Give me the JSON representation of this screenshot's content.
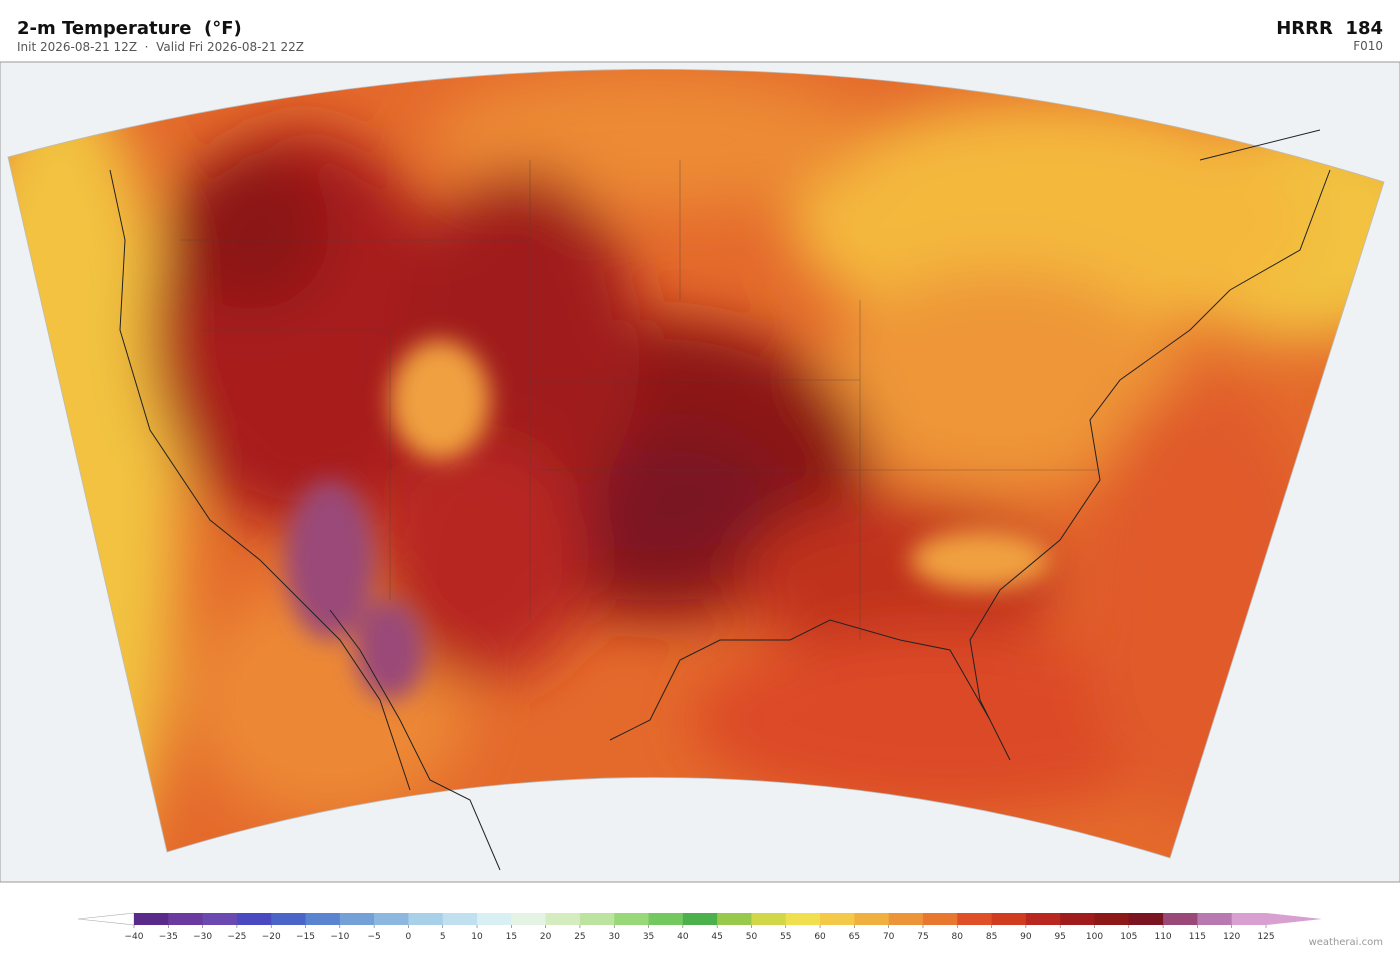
{
  "header": {
    "title": "2-m Temperature  (°F)",
    "subtitle": "Init 2026-08-21 12Z  ·  Valid Fri 2026-08-21 22Z",
    "model": "HRRR  184",
    "forecast_hour": "F010"
  },
  "colorbar": {
    "ticks": [
      {
        "value": -40,
        "label": "−40"
      },
      {
        "value": -35,
        "label": "−35"
      },
      {
        "value": -30,
        "label": "−30"
      },
      {
        "value": -25,
        "label": "−25"
      },
      {
        "value": -20,
        "label": "−20"
      },
      {
        "value": -15,
        "label": "−15"
      },
      {
        "value": -10,
        "label": "−10"
      },
      {
        "value": -5,
        "label": "−5"
      },
      0,
      5,
      10,
      15,
      20,
      25,
      30,
      35,
      40,
      45,
      50,
      55,
      60,
      65,
      70,
      75,
      80,
      85,
      90,
      95,
      100,
      105,
      110,
      115,
      120,
      125
    ],
    "colors": [
      "#5a2a8a",
      "#6a3a9e",
      "#6a4ab0",
      "#4a4ac0",
      "#4a64c8",
      "#5a84d0",
      "#74a0d8",
      "#8cb8e0",
      "#a8d0e8",
      "#c0e0f0",
      "#d8f0f4",
      "#e4f4e4",
      "#d4ecc0",
      "#bce4a0",
      "#98d878",
      "#74c860",
      "#4cb04c",
      "#98c84c",
      "#d0d848",
      "#f0e050",
      "#f4c848",
      "#f0b040",
      "#ec9438",
      "#e87830",
      "#e05028",
      "#d03c20",
      "#b82820",
      "#a01c1c",
      "#8c1818",
      "#7a1420",
      "#9a4878",
      "#b878b0",
      "#d8a0d0"
    ]
  },
  "footer": {
    "credit": "weatherai.com"
  }
}
